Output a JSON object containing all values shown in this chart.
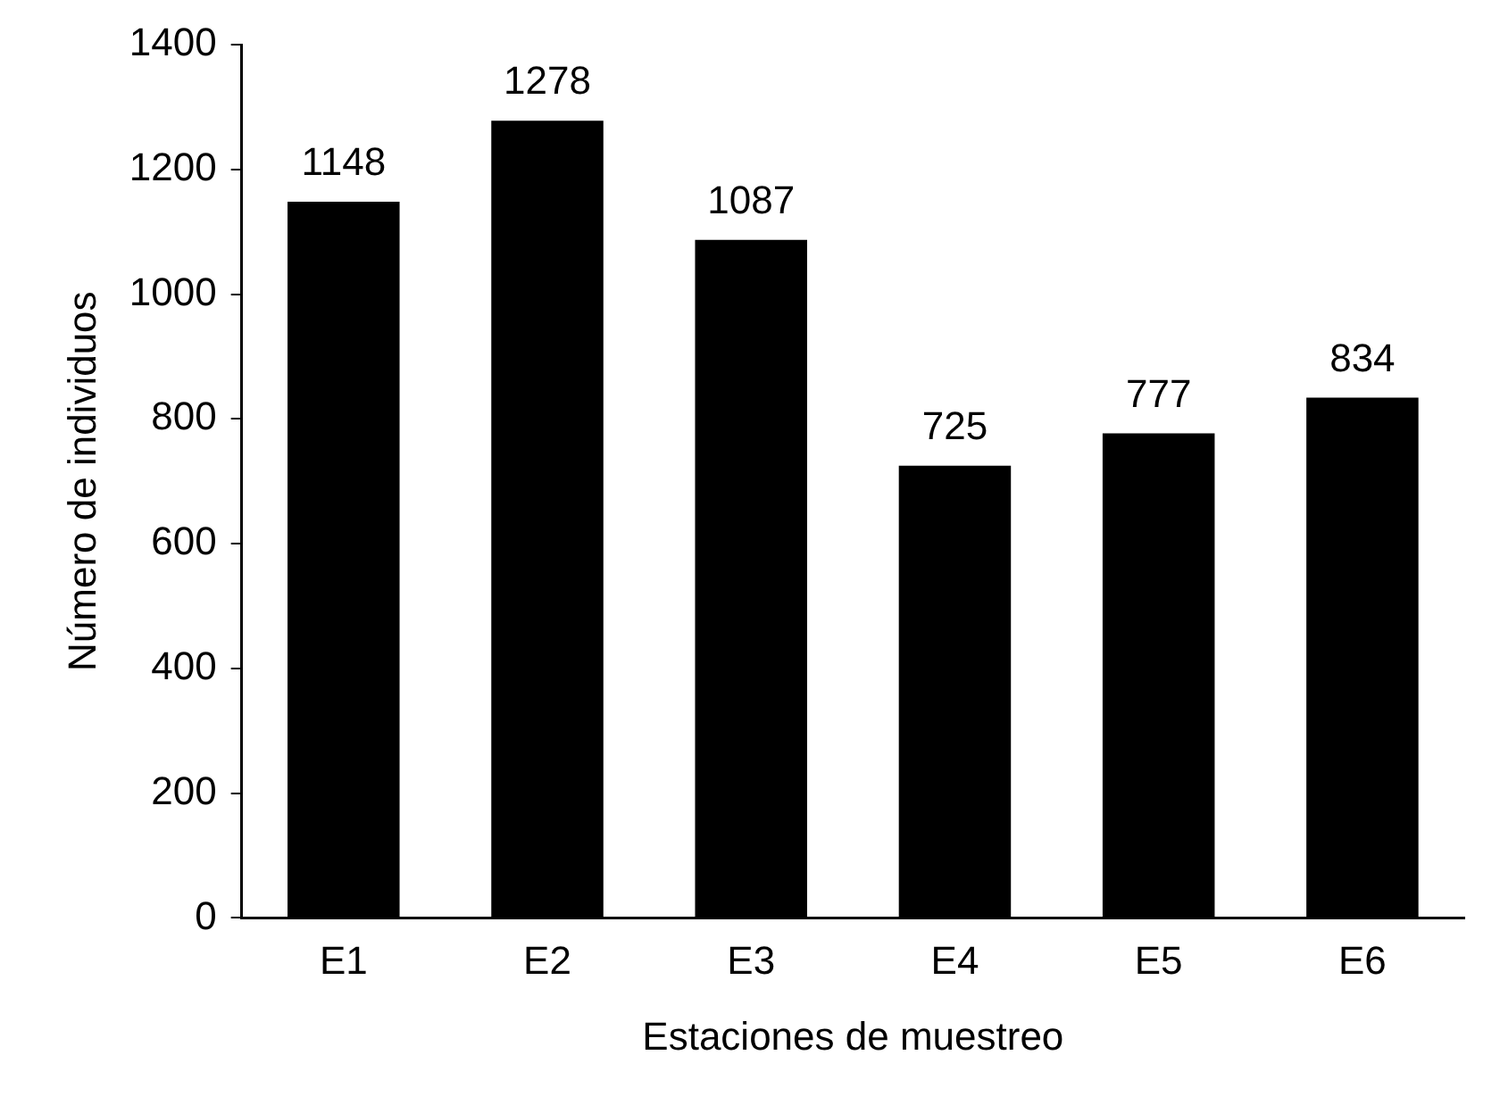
{
  "chart_data": {
    "type": "bar",
    "xlabel": "Estaciones de muestreo",
    "ylabel": "Número de individuos",
    "categories": [
      "E1",
      "E2",
      "E3",
      "E4",
      "E5",
      "E6"
    ],
    "values": [
      1148,
      1278,
      1087,
      725,
      777,
      834
    ],
    "color": "#000000",
    "ylim": [
      0,
      1400
    ],
    "yticks": [
      0,
      200,
      400,
      600,
      800,
      1000,
      1200,
      1400
    ],
    "grid": false,
    "legend": false,
    "data_labels": true
  }
}
